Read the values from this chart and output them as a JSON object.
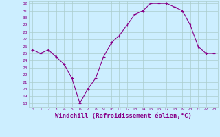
{
  "x": [
    0,
    1,
    2,
    3,
    4,
    5,
    6,
    7,
    8,
    9,
    10,
    11,
    12,
    13,
    14,
    15,
    16,
    17,
    18,
    19,
    20,
    21,
    22,
    23
  ],
  "y": [
    25.5,
    25.0,
    25.5,
    24.5,
    23.5,
    21.5,
    18.0,
    20.0,
    21.5,
    24.5,
    26.5,
    27.5,
    29.0,
    30.5,
    31.0,
    32.0,
    32.0,
    32.0,
    31.5,
    31.0,
    29.0,
    26.0,
    25.0,
    25.0
  ],
  "xlim": [
    -0.5,
    23.5
  ],
  "ylim_min": 17.5,
  "ylim_max": 32.3,
  "yticks": [
    18,
    19,
    20,
    21,
    22,
    23,
    24,
    25,
    26,
    27,
    28,
    29,
    30,
    31,
    32
  ],
  "xticks": [
    0,
    1,
    2,
    3,
    4,
    5,
    6,
    7,
    8,
    9,
    10,
    11,
    12,
    13,
    14,
    15,
    16,
    17,
    18,
    19,
    20,
    21,
    22,
    23
  ],
  "xlabel": "Windchill (Refroidissement éolien,°C)",
  "line_color": "#880088",
  "marker": "+",
  "bg_color": "#cceeff",
  "grid_color": "#aacccc",
  "xlabel_color": "#880088",
  "tick_color": "#880088",
  "ytick_fontsize": 4.5,
  "xtick_fontsize": 4.5,
  "xlabel_fontsize": 6.5,
  "linewidth": 0.8,
  "markersize": 3.0,
  "markeredgewidth": 0.8
}
